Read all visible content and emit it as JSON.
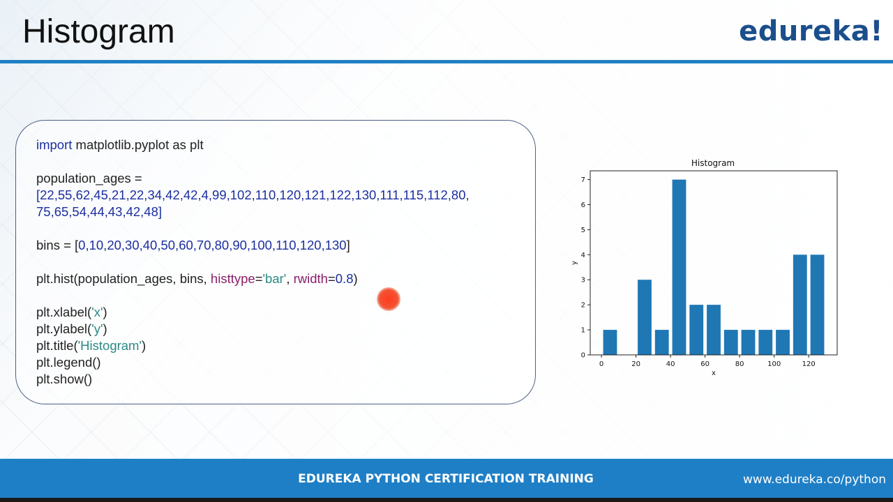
{
  "slide": {
    "title": "Histogram",
    "logo": "edureka!",
    "footer_center": "EDUREKA PYTHON CERTIFICATION TRAINING",
    "footer_url": "www.edureka.co/python"
  },
  "code": {
    "import_kw": "import",
    "import_rest": " matplotlib.pyplot as plt",
    "pop_lhs": "population_ages =",
    "pop_line1": "[22,55,62,45,21,22,34,42,42,4,99,102,110,120,121,122,130,111,115,112,80,",
    "pop_line2": "75,65,54,44,43,42,48]",
    "bins_lhs": "bins = [",
    "bins_values": "0,10,20,30,40,50,60,70,80,90,100,110,120,130",
    "bins_close": "]",
    "hist_prefix": "plt.hist(population_ages, bins, ",
    "hist_arg1": "histtype",
    "hist_str1": "'bar'",
    "hist_sep": ", ",
    "hist_arg2": "rwidth",
    "hist_eq": "=",
    "hist_num": "0.8",
    "hist_close": ")",
    "xlabel_prefix": "plt.xlabel(",
    "xlabel_str": "'x'",
    "ylabel_prefix": "plt.ylabel(",
    "ylabel_str": "'y'",
    "title_prefix": "plt.title(",
    "title_str": "'Histogram'",
    "close_paren": ")",
    "legend_line": "plt.legend()",
    "show_line": "plt.show()"
  },
  "chart_data": {
    "type": "bar",
    "title": "Histogram",
    "xlabel": "x",
    "ylabel": "y",
    "bin_edges": [
      0,
      10,
      20,
      30,
      40,
      50,
      60,
      70,
      80,
      90,
      100,
      110,
      120,
      130
    ],
    "values": [
      1,
      0,
      3,
      1,
      7,
      2,
      2,
      1,
      1,
      1,
      1,
      4,
      4
    ],
    "rwidth": 0.8,
    "xlim": [
      -6.5,
      136.5
    ],
    "ylim": [
      0,
      7.35
    ],
    "xticks": [
      0,
      20,
      40,
      60,
      80,
      100,
      120
    ],
    "yticks": [
      0,
      1,
      2,
      3,
      4,
      5,
      6,
      7
    ],
    "bar_color": "#1f77b4",
    "grid": false
  }
}
